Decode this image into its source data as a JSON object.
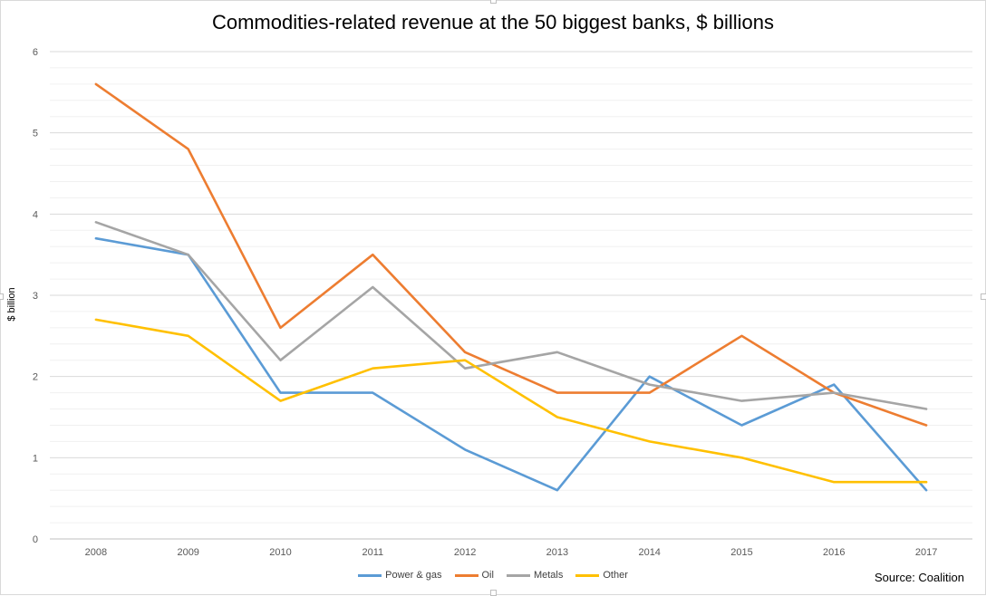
{
  "chart_data": {
    "type": "line",
    "title": "Commodities-related revenue at the 50 biggest banks, $ billions",
    "xlabel": "",
    "ylabel": "$ billion",
    "ylim": [
      0,
      6
    ],
    "yticks": [
      "0",
      "1",
      "2",
      "3",
      "4",
      "5",
      "6"
    ],
    "categories": [
      "2008",
      "2009",
      "2010",
      "2011",
      "2012",
      "2013",
      "2014",
      "2015",
      "2016",
      "2017"
    ],
    "series": [
      {
        "name": "Power & gas",
        "color": "#5B9BD5",
        "values": [
          3.7,
          3.5,
          1.8,
          1.8,
          1.1,
          0.6,
          2.0,
          1.4,
          1.9,
          0.6
        ]
      },
      {
        "name": "Oil",
        "color": "#ED7D31",
        "values": [
          5.6,
          4.8,
          2.6,
          3.5,
          2.3,
          1.8,
          1.8,
          2.5,
          1.8,
          1.4
        ]
      },
      {
        "name": "Metals",
        "color": "#A5A5A5",
        "values": [
          3.9,
          3.5,
          2.2,
          3.1,
          2.1,
          2.3,
          1.9,
          1.7,
          1.8,
          1.6
        ]
      },
      {
        "name": "Other",
        "color": "#FFC000",
        "values": [
          2.7,
          2.5,
          1.7,
          2.1,
          2.2,
          1.5,
          1.2,
          1.0,
          0.7,
          0.7
        ]
      }
    ],
    "grid": true,
    "legend_position": "bottom-center",
    "source_note": "Source: Coalition"
  }
}
